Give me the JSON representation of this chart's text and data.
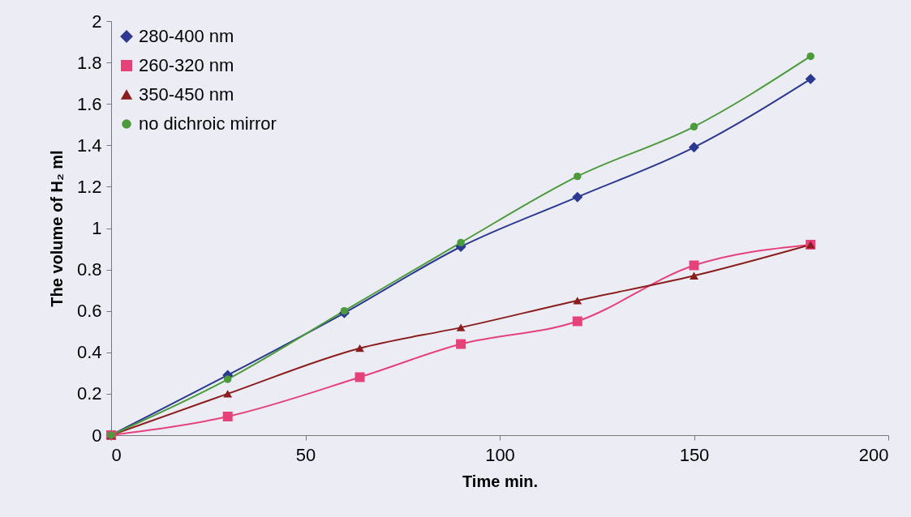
{
  "chart_data": {
    "type": "line",
    "xlabel": "Time min.",
    "ylabel": "The volume of H₂ ml",
    "x": [
      0,
      30,
      60,
      90,
      120,
      150,
      180
    ],
    "series": [
      {
        "name": "280-400 nm",
        "color": "#2b3990",
        "marker": "diamond",
        "values": [
          0,
          0.29,
          0.59,
          0.91,
          1.15,
          1.39,
          1.72
        ]
      },
      {
        "name": "260-320 nm",
        "color": "#e6427a",
        "marker": "square",
        "x": [
          0,
          30,
          64,
          90,
          120,
          150,
          180
        ],
        "values": [
          0,
          0.09,
          0.28,
          0.44,
          0.55,
          0.82,
          0.92
        ]
      },
      {
        "name": "350-450 nm",
        "color": "#8b1d1d",
        "marker": "triangle",
        "x": [
          0,
          30,
          64,
          90,
          120,
          150,
          180
        ],
        "values": [
          0,
          0.2,
          0.42,
          0.52,
          0.65,
          0.77,
          0.92
        ]
      },
      {
        "name": "no dichroic mirror",
        "color": "#4b9a3c",
        "marker": "circle",
        "values": [
          0,
          0.27,
          0.6,
          0.93,
          1.25,
          1.49,
          1.83
        ]
      }
    ],
    "xlim": [
      0,
      200
    ],
    "xticks": [
      0,
      50,
      100,
      150,
      200
    ],
    "ylim": [
      0,
      2
    ],
    "yticks": [
      0,
      0.2,
      0.4,
      0.6,
      0.8,
      1,
      1.2,
      1.4,
      1.6,
      1.8,
      2
    ],
    "grid": false,
    "legend": "top left"
  }
}
